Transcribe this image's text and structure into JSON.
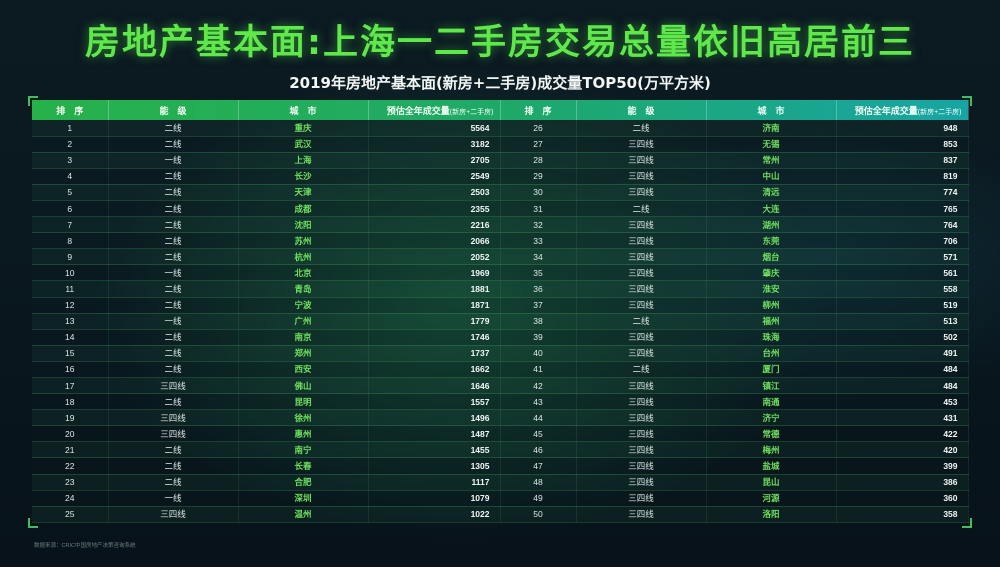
{
  "header": {
    "title": "房地产基本面:上海一二手房交易总量依旧高居前三",
    "subtitle": "2019年房地产基本面(新房+二手房)成交量TOP50(万平方米)"
  },
  "footnote": "数据来源：CRIC中国房地产决策咨询系统",
  "columns": {
    "rank": "排　序",
    "tier": "能　级",
    "city": "城　市",
    "volume": "预估全年成交量",
    "volume_note": "(新房+二手房)"
  },
  "chart_data": {
    "type": "table",
    "title": "2019年房地产基本面(新房+二手房)成交量TOP50(万平方米)",
    "headers": [
      "排序",
      "能级",
      "城市",
      "预估全年成交量(新房+二手房)"
    ],
    "rows": [
      {
        "rank": "1",
        "tier": "二线",
        "city": "重庆",
        "volume": "5564"
      },
      {
        "rank": "2",
        "tier": "二线",
        "city": "武汉",
        "volume": "3182"
      },
      {
        "rank": "3",
        "tier": "一线",
        "city": "上海",
        "volume": "2705"
      },
      {
        "rank": "4",
        "tier": "二线",
        "city": "长沙",
        "volume": "2549"
      },
      {
        "rank": "5",
        "tier": "二线",
        "city": "天津",
        "volume": "2503"
      },
      {
        "rank": "6",
        "tier": "二线",
        "city": "成都",
        "volume": "2355"
      },
      {
        "rank": "7",
        "tier": "二线",
        "city": "沈阳",
        "volume": "2216"
      },
      {
        "rank": "8",
        "tier": "二线",
        "city": "苏州",
        "volume": "2066"
      },
      {
        "rank": "9",
        "tier": "二线",
        "city": "杭州",
        "volume": "2052"
      },
      {
        "rank": "10",
        "tier": "一线",
        "city": "北京",
        "volume": "1969"
      },
      {
        "rank": "11",
        "tier": "二线",
        "city": "青岛",
        "volume": "1881"
      },
      {
        "rank": "12",
        "tier": "二线",
        "city": "宁波",
        "volume": "1871"
      },
      {
        "rank": "13",
        "tier": "一线",
        "city": "广州",
        "volume": "1779"
      },
      {
        "rank": "14",
        "tier": "二线",
        "city": "南京",
        "volume": "1746"
      },
      {
        "rank": "15",
        "tier": "二线",
        "city": "郑州",
        "volume": "1737"
      },
      {
        "rank": "16",
        "tier": "二线",
        "city": "西安",
        "volume": "1662"
      },
      {
        "rank": "17",
        "tier": "三四线",
        "city": "佛山",
        "volume": "1646"
      },
      {
        "rank": "18",
        "tier": "二线",
        "city": "昆明",
        "volume": "1557"
      },
      {
        "rank": "19",
        "tier": "三四线",
        "city": "徐州",
        "volume": "1496"
      },
      {
        "rank": "20",
        "tier": "三四线",
        "city": "惠州",
        "volume": "1487"
      },
      {
        "rank": "21",
        "tier": "二线",
        "city": "南宁",
        "volume": "1455"
      },
      {
        "rank": "22",
        "tier": "二线",
        "city": "长春",
        "volume": "1305"
      },
      {
        "rank": "23",
        "tier": "二线",
        "city": "合肥",
        "volume": "1117"
      },
      {
        "rank": "24",
        "tier": "一线",
        "city": "深圳",
        "volume": "1079"
      },
      {
        "rank": "25",
        "tier": "三四线",
        "city": "温州",
        "volume": "1022"
      },
      {
        "rank": "26",
        "tier": "二线",
        "city": "济南",
        "volume": "948"
      },
      {
        "rank": "27",
        "tier": "三四线",
        "city": "无锡",
        "volume": "853"
      },
      {
        "rank": "28",
        "tier": "三四线",
        "city": "常州",
        "volume": "837"
      },
      {
        "rank": "29",
        "tier": "三四线",
        "city": "中山",
        "volume": "819"
      },
      {
        "rank": "30",
        "tier": "三四线",
        "city": "清远",
        "volume": "774"
      },
      {
        "rank": "31",
        "tier": "二线",
        "city": "大连",
        "volume": "765"
      },
      {
        "rank": "32",
        "tier": "三四线",
        "city": "湖州",
        "volume": "764"
      },
      {
        "rank": "33",
        "tier": "三四线",
        "city": "东莞",
        "volume": "706"
      },
      {
        "rank": "34",
        "tier": "三四线",
        "city": "烟台",
        "volume": "571"
      },
      {
        "rank": "35",
        "tier": "三四线",
        "city": "肇庆",
        "volume": "561"
      },
      {
        "rank": "36",
        "tier": "三四线",
        "city": "淮安",
        "volume": "558"
      },
      {
        "rank": "37",
        "tier": "三四线",
        "city": "柳州",
        "volume": "519"
      },
      {
        "rank": "38",
        "tier": "二线",
        "city": "福州",
        "volume": "513"
      },
      {
        "rank": "39",
        "tier": "三四线",
        "city": "珠海",
        "volume": "502"
      },
      {
        "rank": "40",
        "tier": "三四线",
        "city": "台州",
        "volume": "491"
      },
      {
        "rank": "41",
        "tier": "二线",
        "city": "厦门",
        "volume": "484"
      },
      {
        "rank": "42",
        "tier": "三四线",
        "city": "镇江",
        "volume": "484"
      },
      {
        "rank": "43",
        "tier": "三四线",
        "city": "南通",
        "volume": "453"
      },
      {
        "rank": "44",
        "tier": "三四线",
        "city": "济宁",
        "volume": "431"
      },
      {
        "rank": "45",
        "tier": "三四线",
        "city": "常德",
        "volume": "422"
      },
      {
        "rank": "46",
        "tier": "三四线",
        "city": "梅州",
        "volume": "420"
      },
      {
        "rank": "47",
        "tier": "三四线",
        "city": "盐城",
        "volume": "399"
      },
      {
        "rank": "48",
        "tier": "三四线",
        "city": "昆山",
        "volume": "386"
      },
      {
        "rank": "49",
        "tier": "三四线",
        "city": "河源",
        "volume": "360"
      },
      {
        "rank": "50",
        "tier": "三四线",
        "city": "洛阳",
        "volume": "358"
      }
    ]
  }
}
